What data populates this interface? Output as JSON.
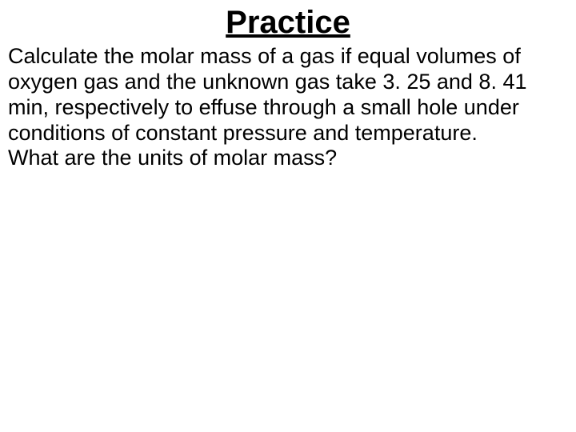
{
  "slide": {
    "title": "Practice",
    "title_fontsize": 40,
    "body_fontsize": 27,
    "paragraph1": "Calculate the molar mass of a gas if equal volumes of oxygen gas and the unknown gas take 3. 25 and 8. 41 min, respectively to effuse through a small hole under conditions of constant pressure and temperature.",
    "paragraph2": "What are the units of molar mass?",
    "background_color": "#ffffff",
    "text_color": "#000000"
  }
}
